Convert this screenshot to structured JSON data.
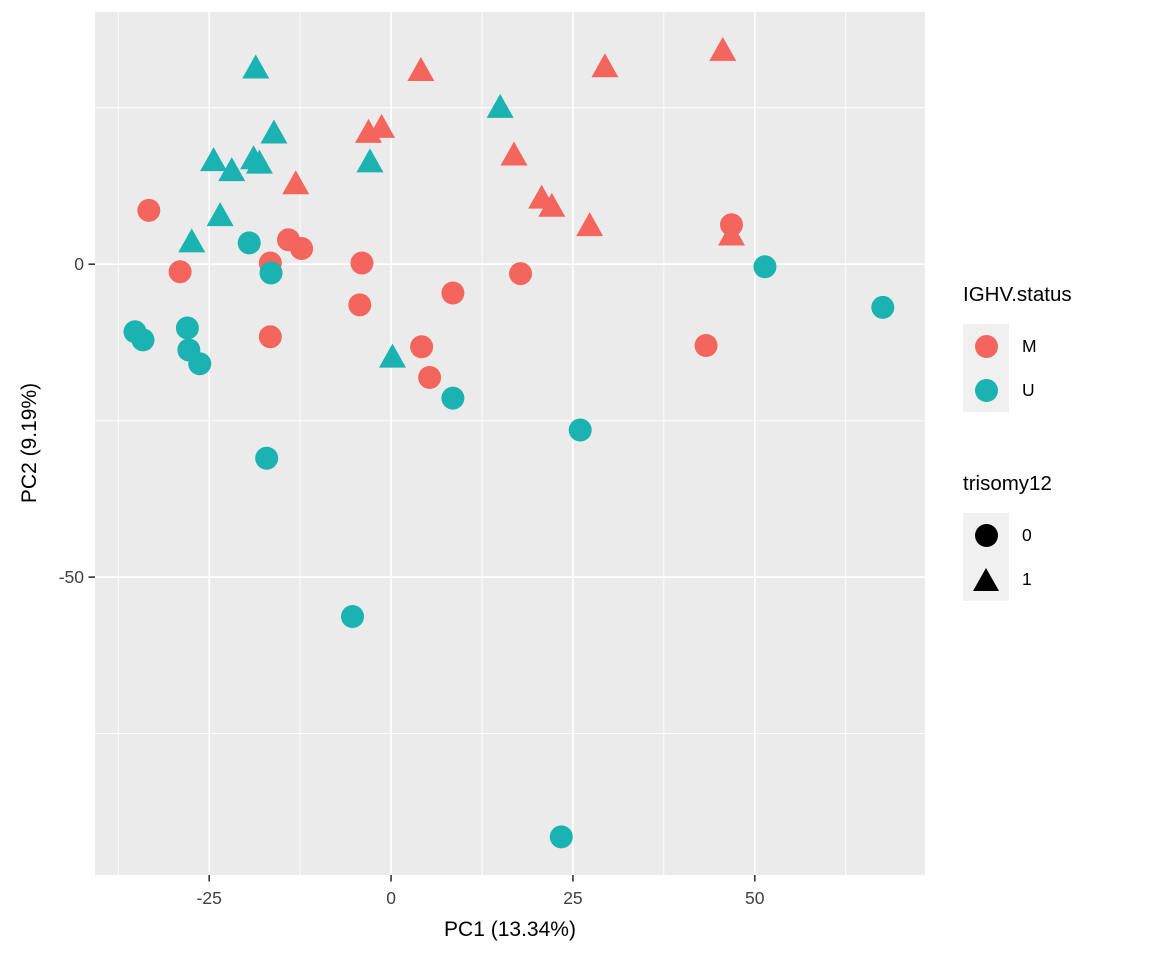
{
  "chart_data": {
    "type": "scatter",
    "title": "",
    "xlabel": "PC1 (13.34%)",
    "ylabel": "PC2 (9.19%)",
    "xlim": [
      -40.7,
      73.4
    ],
    "ylim": [
      -97.6,
      40.3
    ],
    "grid": "white major and minor gridlines on gray panel",
    "legend_position": "right",
    "x_ticks": [
      {
        "v": -25,
        "label": "-25"
      },
      {
        "v": 0,
        "label": "0"
      },
      {
        "v": 25,
        "label": "25"
      },
      {
        "v": 50,
        "label": "50"
      }
    ],
    "x_minor": [
      -37.5,
      -12.5,
      12.5,
      37.5,
      62.5
    ],
    "y_ticks": [
      {
        "v": 0,
        "label": "0"
      },
      {
        "v": -50,
        "label": "-50"
      }
    ],
    "y_minor": [
      25,
      -25,
      -75
    ],
    "series": [
      {
        "name": "IGHV.status M, trisomy12 1",
        "ighv_status": "M",
        "trisomy12": "1",
        "shape": "triangle",
        "color_key": "M",
        "points": [
          [
            4.1,
            30.8
          ],
          [
            29.4,
            31.4
          ],
          [
            45.6,
            34.0
          ],
          [
            -13.1,
            12.7
          ],
          [
            -3.1,
            20.9
          ],
          [
            -1.3,
            21.7
          ],
          [
            16.9,
            17.3
          ],
          [
            20.7,
            10.4
          ],
          [
            22.1,
            9.1
          ],
          [
            27.3,
            6.0
          ],
          [
            46.8,
            4.5
          ]
        ]
      },
      {
        "name": "IGHV.status U, trisomy12 1",
        "ighv_status": "U",
        "trisomy12": "1",
        "shape": "triangle",
        "color_key": "U",
        "points": [
          [
            -18.6,
            31.2
          ],
          [
            -16.1,
            20.8
          ],
          [
            -24.4,
            16.4
          ],
          [
            -21.9,
            14.8
          ],
          [
            -18.9,
            16.7
          ],
          [
            -18.1,
            16.0
          ],
          [
            -23.5,
            7.6
          ],
          [
            -27.4,
            3.4
          ],
          [
            -2.9,
            16.2
          ],
          [
            15.0,
            24.9
          ],
          [
            0.2,
            -15.0
          ]
        ]
      },
      {
        "name": "IGHV.status M, trisomy12 0",
        "ighv_status": "M",
        "trisomy12": "0",
        "shape": "circle",
        "color_key": "M",
        "points": [
          [
            -33.3,
            8.6
          ],
          [
            -29.0,
            -1.2
          ],
          [
            -16.6,
            0.2
          ],
          [
            -14.1,
            3.9
          ],
          [
            -12.3,
            2.5
          ],
          [
            -4.0,
            0.2
          ],
          [
            -4.3,
            -6.5
          ],
          [
            -16.6,
            -11.6
          ],
          [
            4.2,
            -13.2
          ],
          [
            5.3,
            -18.1
          ],
          [
            8.5,
            -4.6
          ],
          [
            17.8,
            -1.5
          ],
          [
            43.3,
            -13.0
          ],
          [
            46.8,
            6.3
          ]
        ]
      },
      {
        "name": "IGHV.status U, trisomy12 0",
        "ighv_status": "U",
        "trisomy12": "0",
        "shape": "circle",
        "color_key": "U",
        "points": [
          [
            -19.5,
            3.4
          ],
          [
            -16.5,
            -1.4
          ],
          [
            -35.2,
            -10.8
          ],
          [
            -34.1,
            -12.1
          ],
          [
            -28.0,
            -10.2
          ],
          [
            -27.8,
            -13.7
          ],
          [
            -26.3,
            -15.9
          ],
          [
            8.5,
            -21.4
          ],
          [
            26.0,
            -26.5
          ],
          [
            -17.1,
            -31.0
          ],
          [
            -5.3,
            -56.3
          ],
          [
            23.4,
            -91.5
          ],
          [
            51.4,
            -0.4
          ],
          [
            67.6,
            -6.9
          ]
        ]
      }
    ]
  },
  "colors": {
    "M": "#F4655D",
    "U": "#1BB3B2",
    "black": "#000000",
    "panel_bg": "#EBEBEB",
    "grid": "#FFFFFF",
    "legend_key_bg": "#F0F0F0",
    "axis_text": "#404040",
    "tick_mark": "#333333",
    "background": "#FFFFFF"
  },
  "legend": {
    "color_legend": {
      "title": "IGHV.status",
      "items": [
        {
          "label": "M",
          "shape": "circle",
          "color_key": "M"
        },
        {
          "label": "U",
          "shape": "circle",
          "color_key": "U"
        }
      ]
    },
    "shape_legend": {
      "title": "trisomy12",
      "items": [
        {
          "label": "0",
          "shape": "circle",
          "color_key": "black"
        },
        {
          "label": "1",
          "shape": "triangle",
          "color_key": "black"
        }
      ]
    }
  }
}
